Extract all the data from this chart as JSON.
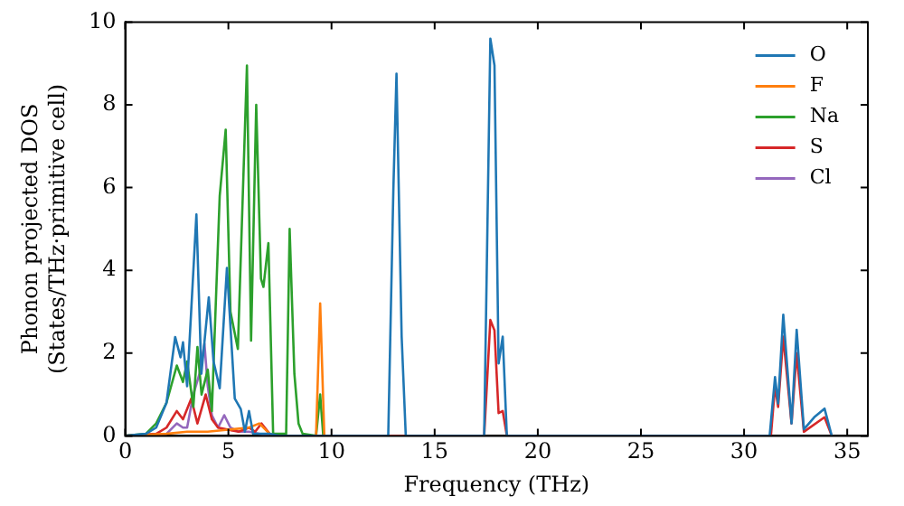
{
  "chart_data": {
    "type": "line",
    "xlabel": "Frequency (THz)",
    "ylabel": "Phonon projected DOS\n(States/THz·primitive cell)",
    "xlim": [
      0,
      36
    ],
    "ylim": [
      0,
      10
    ],
    "xticks": [
      0,
      5,
      10,
      15,
      20,
      25,
      30,
      35
    ],
    "yticks": [
      0,
      2,
      4,
      6,
      8,
      10
    ],
    "grid": false,
    "legend": "top right",
    "marker": "none",
    "line_style": "solid",
    "series": [
      {
        "name": "O",
        "color": "#1f77b4",
        "x": [
          0,
          1,
          1.5,
          2,
          2.42,
          2.68,
          2.8,
          3.0,
          3.45,
          3.69,
          4.05,
          4.28,
          4.58,
          4.93,
          5.31,
          5.6,
          5.8,
          6.0,
          6.2,
          7,
          7.5,
          12.75,
          13.0,
          13.15,
          13.4,
          13.6,
          17.4,
          17.7,
          17.9,
          18.1,
          18.3,
          18.5,
          31.24,
          31.5,
          31.65,
          31.9,
          32.3,
          32.55,
          32.9,
          33.4,
          33.9,
          34.25
        ],
        "values": [
          0,
          0.05,
          0.2,
          0.8,
          2.39,
          1.9,
          2.26,
          1.2,
          5.35,
          1.5,
          3.35,
          1.8,
          1.15,
          4.06,
          0.9,
          0.65,
          0.1,
          0.6,
          0.05,
          0.05,
          0,
          0,
          6,
          8.75,
          2.4,
          0,
          0,
          9.6,
          8.95,
          1.75,
          2.4,
          0,
          0,
          1.42,
          0.78,
          2.93,
          0.3,
          2.56,
          0.16,
          0.45,
          0.66,
          0
        ]
      },
      {
        "name": "F",
        "color": "#ff7f0e",
        "x": [
          0,
          2,
          3,
          4,
          5,
          6,
          6.5,
          7,
          7.3,
          9.25,
          9.45,
          9.65
        ],
        "values": [
          0,
          0.05,
          0.1,
          0.1,
          0.15,
          0.2,
          0.3,
          0.05,
          0,
          0,
          3.2,
          0
        ]
      },
      {
        "name": "Na",
        "color": "#2ca02c",
        "x": [
          0,
          1,
          1.5,
          2,
          2.5,
          2.8,
          3.0,
          3.3,
          3.5,
          3.7,
          4.0,
          4.2,
          4.58,
          4.87,
          5.1,
          5.46,
          5.9,
          6.1,
          6.35,
          6.58,
          6.7,
          6.94,
          7.17,
          7.8,
          7.97,
          8.2,
          8.4,
          8.6,
          9.25,
          9.45,
          9.6
        ],
        "values": [
          0,
          0.05,
          0.3,
          0.8,
          1.7,
          1.3,
          1.8,
          0.7,
          2.15,
          1.0,
          1.6,
          0.6,
          5.8,
          7.4,
          3.0,
          2.1,
          8.95,
          2.3,
          8.0,
          3.8,
          3.6,
          4.66,
          0.05,
          0.05,
          5.0,
          1.5,
          0.3,
          0.05,
          0,
          1.0,
          0
        ]
      },
      {
        "name": "S",
        "color": "#d62728",
        "x": [
          0,
          1.5,
          2,
          2.5,
          2.8,
          3.2,
          3.5,
          3.9,
          4.2,
          4.5,
          5,
          5.5,
          6,
          6.3,
          6.6,
          7,
          7.5,
          17.4,
          17.7,
          17.9,
          18.1,
          18.3,
          18.5,
          31.3,
          31.5,
          31.65,
          31.9,
          32.3,
          32.55,
          32.9,
          33.9,
          34.25
        ],
        "values": [
          0,
          0.05,
          0.2,
          0.6,
          0.4,
          0.9,
          0.3,
          1.0,
          0.4,
          0.2,
          0.15,
          0.1,
          0.2,
          0.1,
          0.3,
          0.05,
          0,
          0,
          2.8,
          2.55,
          0.55,
          0.6,
          0,
          0,
          1.2,
          0.7,
          2.4,
          0.3,
          2.0,
          0.1,
          0.45,
          0
        ]
      },
      {
        "name": "Cl",
        "color": "#9467bd",
        "x": [
          0,
          2,
          2.5,
          2.8,
          3.0,
          3.3,
          3.6,
          3.84,
          4.0,
          4.2,
          4.5,
          4.8,
          5.1,
          5.5,
          6,
          7
        ],
        "values": [
          0,
          0.05,
          0.3,
          0.2,
          0.2,
          1.0,
          1.5,
          2.23,
          1.2,
          0.5,
          0.2,
          0.5,
          0.2,
          0.1,
          0.1,
          0
        ]
      }
    ]
  }
}
